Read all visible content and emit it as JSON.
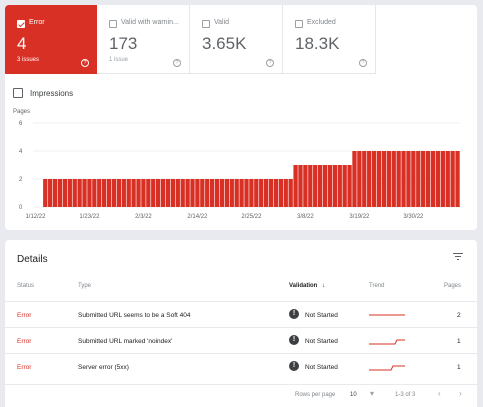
{
  "tiles": [
    {
      "label": "Error",
      "value": "4",
      "sub": "3 issues",
      "help": "?"
    },
    {
      "label": "Valid with warnin...",
      "value": "173",
      "sub": "1 issue",
      "help": "?"
    },
    {
      "label": "Valid",
      "value": "3.65K",
      "sub": "",
      "help": "?"
    },
    {
      "label": "Excluded",
      "value": "18.3K",
      "sub": "",
      "help": "?"
    }
  ],
  "impressions_label": "Impressions",
  "chart_data": {
    "type": "bar",
    "title": "Pages",
    "ylim": [
      0,
      6
    ],
    "yticks": [
      "6",
      "4",
      "2",
      "0"
    ],
    "xticklabels": [
      "1/12/22",
      "1/23/22",
      "2/3/22",
      "2/14/22",
      "2/25/22",
      "3/8/22",
      "3/19/22",
      "3/30/22"
    ],
    "bar_color": "#d93025",
    "segments": [
      {
        "from": "1/12/22",
        "to": "1/13/22",
        "value": 0
      },
      {
        "from": "1/14/22",
        "to": "3/5/22",
        "value": 2
      },
      {
        "from": "3/6/22",
        "to": "3/17/22",
        "value": 3
      },
      {
        "from": "3/18/22",
        "to": "4/8/22",
        "value": 4
      }
    ]
  },
  "details": {
    "title": "Details",
    "columns": {
      "status": "Status",
      "type": "Type",
      "validation": "Validation",
      "validation_sort": "↓",
      "trend": "Trend",
      "pages": "Pages"
    },
    "rows": [
      {
        "status": "Error",
        "type": "Submitted URL seems to be a Soft 404",
        "validation": "Not Started",
        "pages": "2"
      },
      {
        "status": "Error",
        "type": "Submitted URL marked 'noindex'",
        "validation": "Not Started",
        "pages": "1"
      },
      {
        "status": "Error",
        "type": "Server error (5xx)",
        "validation": "Not Started",
        "pages": "1"
      }
    ],
    "footer": {
      "rows_per_page_label": "Rows per page",
      "rows_per_page_value": "10",
      "dropdown": "▾",
      "range": "1-3 of 3",
      "prev": "‹",
      "next": "›"
    }
  }
}
